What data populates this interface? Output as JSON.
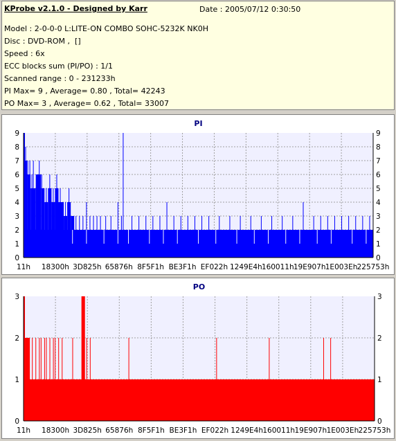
{
  "info": {
    "title": "KProbe v2.1.0 - Designed by Karr",
    "date": "Date : 2005/07/12 0:30:50",
    "lines": [
      "Model : 2-0-0-0 L:LITE-ON COMBO SOHC-5232K NK0H",
      "Disc : DVD-ROM ,  []",
      "Speed : 6x",
      "ECC blocks sum (PI/PO) : 1/1",
      "Scanned range : 0 - 231233h",
      "PI Max= 9 , Average= 0.80 , Total= 42243",
      "PO Max= 3 , Average= 0.62 , Total= 33007"
    ]
  },
  "colors": {
    "pi": "#0000ff",
    "po": "#ff0000",
    "plot_bg": "#f0f0ff",
    "grid": "#a0a0a0"
  },
  "chart_data": [
    {
      "type": "bar",
      "title": "PI",
      "ylim": [
        0,
        9
      ],
      "yticks": [
        0,
        1,
        2,
        3,
        4,
        5,
        6,
        7,
        8,
        9
      ],
      "xticks": [
        "11h",
        "18300h",
        "3D825h",
        "65876h",
        "8F5F1h",
        "BE3F1h",
        "EF022h",
        "1249E4h",
        "160011h",
        "19E907h",
        "1E003Eh",
        "225753h"
      ],
      "grid": true,
      "series": [
        {
          "baseline": 2,
          "segments": [
            {
              "from": 0.0,
              "to": 0.004,
              "value": 9
            },
            {
              "from": 0.004,
              "to": 0.01,
              "value": 7
            },
            {
              "from": 0.01,
              "to": 0.02,
              "value": 6
            },
            {
              "from": 0.02,
              "to": 0.035,
              "value": 5
            },
            {
              "from": 0.035,
              "to": 0.05,
              "value": 6
            },
            {
              "from": 0.05,
              "to": 0.06,
              "value": 5
            },
            {
              "from": 0.06,
              "to": 0.07,
              "value": 4
            },
            {
              "from": 0.07,
              "to": 0.08,
              "value": 5
            },
            {
              "from": 0.08,
              "to": 0.09,
              "value": 4
            },
            {
              "from": 0.09,
              "to": 0.1,
              "value": 5
            },
            {
              "from": 0.1,
              "to": 0.115,
              "value": 4
            },
            {
              "from": 0.115,
              "to": 0.125,
              "value": 3
            },
            {
              "from": 0.125,
              "to": 0.135,
              "value": 4
            },
            {
              "from": 0.135,
              "to": 0.145,
              "value": 3
            }
          ],
          "spikes": [
            {
              "x": 0.006,
              "value": 8
            },
            {
              "x": 0.012,
              "value": 7
            },
            {
              "x": 0.018,
              "value": 7
            },
            {
              "x": 0.024,
              "value": 6
            },
            {
              "x": 0.028,
              "value": 7
            },
            {
              "x": 0.04,
              "value": 6
            },
            {
              "x": 0.045,
              "value": 7
            },
            {
              "x": 0.052,
              "value": 6
            },
            {
              "x": 0.065,
              "value": 5
            },
            {
              "x": 0.075,
              "value": 6
            },
            {
              "x": 0.085,
              "value": 5
            },
            {
              "x": 0.095,
              "value": 6
            },
            {
              "x": 0.105,
              "value": 5
            },
            {
              "x": 0.12,
              "value": 4
            },
            {
              "x": 0.13,
              "value": 5
            },
            {
              "x": 0.15,
              "value": 3
            },
            {
              "x": 0.16,
              "value": 3
            },
            {
              "x": 0.17,
              "value": 3
            },
            {
              "x": 0.18,
              "value": 4
            },
            {
              "x": 0.19,
              "value": 3
            },
            {
              "x": 0.2,
              "value": 3
            },
            {
              "x": 0.21,
              "value": 3
            },
            {
              "x": 0.22,
              "value": 3
            },
            {
              "x": 0.235,
              "value": 3
            },
            {
              "x": 0.25,
              "value": 3
            },
            {
              "x": 0.27,
              "value": 4
            },
            {
              "x": 0.28,
              "value": 3
            },
            {
              "x": 0.285,
              "value": 9
            },
            {
              "x": 0.31,
              "value": 3
            },
            {
              "x": 0.33,
              "value": 3
            },
            {
              "x": 0.35,
              "value": 3
            },
            {
              "x": 0.37,
              "value": 3
            },
            {
              "x": 0.39,
              "value": 3
            },
            {
              "x": 0.41,
              "value": 4
            },
            {
              "x": 0.43,
              "value": 3
            },
            {
              "x": 0.45,
              "value": 3
            },
            {
              "x": 0.47,
              "value": 3
            },
            {
              "x": 0.49,
              "value": 3
            },
            {
              "x": 0.51,
              "value": 3
            },
            {
              "x": 0.53,
              "value": 3
            },
            {
              "x": 0.56,
              "value": 3
            },
            {
              "x": 0.59,
              "value": 3
            },
            {
              "x": 0.62,
              "value": 3
            },
            {
              "x": 0.65,
              "value": 3
            },
            {
              "x": 0.68,
              "value": 3
            },
            {
              "x": 0.71,
              "value": 3
            },
            {
              "x": 0.74,
              "value": 3
            },
            {
              "x": 0.77,
              "value": 3
            },
            {
              "x": 0.8,
              "value": 4
            },
            {
              "x": 0.83,
              "value": 3
            },
            {
              "x": 0.85,
              "value": 3
            },
            {
              "x": 0.87,
              "value": 3
            },
            {
              "x": 0.89,
              "value": 3
            },
            {
              "x": 0.91,
              "value": 3
            },
            {
              "x": 0.93,
              "value": 3
            },
            {
              "x": 0.95,
              "value": 3
            },
            {
              "x": 0.97,
              "value": 3
            },
            {
              "x": 0.99,
              "value": 3
            }
          ],
          "dips": [
            {
              "x": 0.14,
              "value": 1
            },
            {
              "x": 0.18,
              "value": 1
            },
            {
              "x": 0.23,
              "value": 1
            },
            {
              "x": 0.27,
              "value": 1
            },
            {
              "x": 0.3,
              "value": 1
            },
            {
              "x": 0.36,
              "value": 1
            },
            {
              "x": 0.4,
              "value": 1
            },
            {
              "x": 0.44,
              "value": 1
            },
            {
              "x": 0.5,
              "value": 1
            },
            {
              "x": 0.55,
              "value": 1
            },
            {
              "x": 0.61,
              "value": 1
            },
            {
              "x": 0.66,
              "value": 1
            },
            {
              "x": 0.7,
              "value": 1
            },
            {
              "x": 0.75,
              "value": 1
            },
            {
              "x": 0.79,
              "value": 1
            },
            {
              "x": 0.84,
              "value": 1
            },
            {
              "x": 0.88,
              "value": 1
            },
            {
              "x": 0.94,
              "value": 1
            },
            {
              "x": 0.98,
              "value": 1
            }
          ]
        }
      ]
    },
    {
      "type": "bar",
      "title": "PO",
      "ylim": [
        0,
        3
      ],
      "yticks": [
        0,
        1,
        2,
        3
      ],
      "xticks": [
        "11h",
        "18300h",
        "3D825h",
        "65876h",
        "8F5F1h",
        "BE3F1h",
        "EF022h",
        "1249E4h",
        "160011h",
        "19E907h",
        "1E003Eh",
        "225753h"
      ],
      "grid": true,
      "series": [
        {
          "baseline": 1,
          "segments": [
            {
              "from": 0.0,
              "to": 0.004,
              "value": 3
            },
            {
              "from": 0.004,
              "to": 0.018,
              "value": 2
            },
            {
              "from": 0.165,
              "to": 0.175,
              "value": 3
            }
          ],
          "spikes": [
            {
              "x": 0.025,
              "value": 2
            },
            {
              "x": 0.035,
              "value": 2
            },
            {
              "x": 0.045,
              "value": 2
            },
            {
              "x": 0.05,
              "value": 2
            },
            {
              "x": 0.06,
              "value": 2
            },
            {
              "x": 0.065,
              "value": 2
            },
            {
              "x": 0.075,
              "value": 2
            },
            {
              "x": 0.085,
              "value": 2
            },
            {
              "x": 0.09,
              "value": 2
            },
            {
              "x": 0.1,
              "value": 2
            },
            {
              "x": 0.11,
              "value": 2
            },
            {
              "x": 0.14,
              "value": 2
            },
            {
              "x": 0.18,
              "value": 2
            },
            {
              "x": 0.19,
              "value": 2
            },
            {
              "x": 0.3,
              "value": 2
            },
            {
              "x": 0.55,
              "value": 2
            },
            {
              "x": 0.7,
              "value": 2
            },
            {
              "x": 0.855,
              "value": 2
            },
            {
              "x": 0.875,
              "value": 2
            }
          ],
          "dips": []
        }
      ]
    }
  ]
}
